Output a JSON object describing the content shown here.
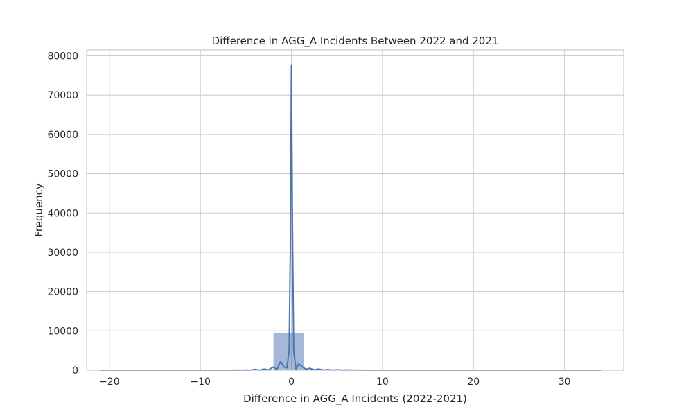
{
  "chart_data": {
    "type": "histogram",
    "title": "Difference in AGG_A Incidents Between 2022 and 2021",
    "xlabel": "Difference in AGG_A Incidents (2022-2021)",
    "ylabel": "Frequency",
    "xlim": [
      -22.5,
      36.5
    ],
    "ylim": [
      0,
      81500
    ],
    "xticks": [
      -20,
      -10,
      0,
      10,
      20,
      30
    ],
    "xtick_labels": [
      "−20",
      "−10",
      "0",
      "10",
      "20",
      "30"
    ],
    "yticks": [
      0,
      10000,
      20000,
      30000,
      40000,
      50000,
      60000,
      70000,
      80000
    ],
    "ytick_labels": [
      "0",
      "10000",
      "20000",
      "30000",
      "40000",
      "50000",
      "60000",
      "70000",
      "80000"
    ],
    "grid": true,
    "bars": [
      {
        "x0": -6.1,
        "x1": -2.0,
        "value": 120
      },
      {
        "x0": -2.0,
        "x1": 1.4,
        "value": 9600
      },
      {
        "x0": 1.4,
        "x1": 7.5,
        "value": 150
      },
      {
        "x0": 7.5,
        "x1": 34.0,
        "value": 40
      }
    ],
    "kde_line": {
      "x": [
        -21,
        -18,
        -15,
        -12,
        -9,
        -7,
        -6,
        -5.5,
        -5,
        -4.5,
        -4,
        -3.5,
        -3,
        -2.5,
        -2,
        -1.6,
        -1.2,
        -0.8,
        -0.5,
        -0.25,
        -0.1,
        0,
        0.1,
        0.25,
        0.5,
        0.8,
        1.2,
        1.6,
        2.0,
        2.5,
        3,
        3.5,
        4,
        4.5,
        5,
        5.5,
        6,
        7,
        9,
        12,
        16,
        20,
        25,
        30,
        34
      ],
      "y": [
        0,
        0,
        0,
        0,
        0,
        0,
        30,
        0,
        50,
        0,
        200,
        0,
        300,
        100,
        800,
        200,
        2200,
        800,
        600,
        5000,
        35000,
        77500,
        40000,
        4800,
        300,
        1600,
        900,
        200,
        500,
        100,
        300,
        50,
        150,
        30,
        100,
        20,
        60,
        20,
        0,
        0,
        0,
        0,
        0,
        0,
        0
      ]
    },
    "colors": {
      "bar_fill": "#4c72b0",
      "line": "#4c72b0",
      "grid": "#cccccc",
      "spine": "#cccccc"
    }
  }
}
